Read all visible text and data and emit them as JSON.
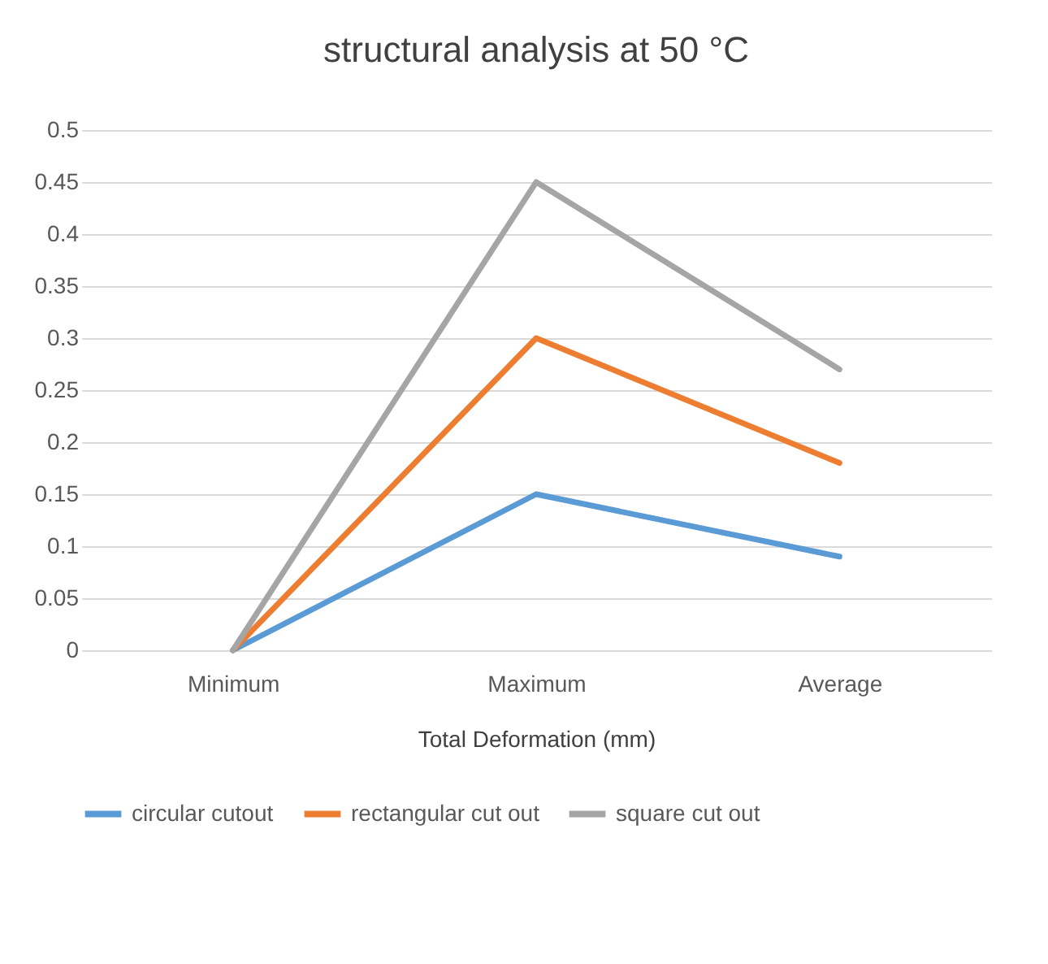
{
  "chart_data": {
    "type": "line",
    "title": "structural analysis  at 50 °C",
    "xlabel": "Total Deformation (mm)",
    "categories": [
      "Minimum",
      "Maximum",
      "Average"
    ],
    "series": [
      {
        "name": "circular cutout",
        "color": "#5b9bd5",
        "values": [
          0,
          0.15,
          0.09
        ]
      },
      {
        "name": "rectangular cut out",
        "color": "#ed7d31",
        "values": [
          0,
          0.3,
          0.18
        ]
      },
      {
        "name": "square cut out",
        "color": "#a5a5a5",
        "values": [
          0,
          0.45,
          0.27
        ]
      }
    ],
    "ylim": [
      0,
      0.5
    ],
    "yticks": [
      0,
      0.05,
      0.1,
      0.15,
      0.2,
      0.25,
      0.3,
      0.35,
      0.4,
      0.45,
      0.5
    ],
    "grid": "y",
    "legend": "bottom",
    "marker": "none",
    "line_style": "solid"
  }
}
